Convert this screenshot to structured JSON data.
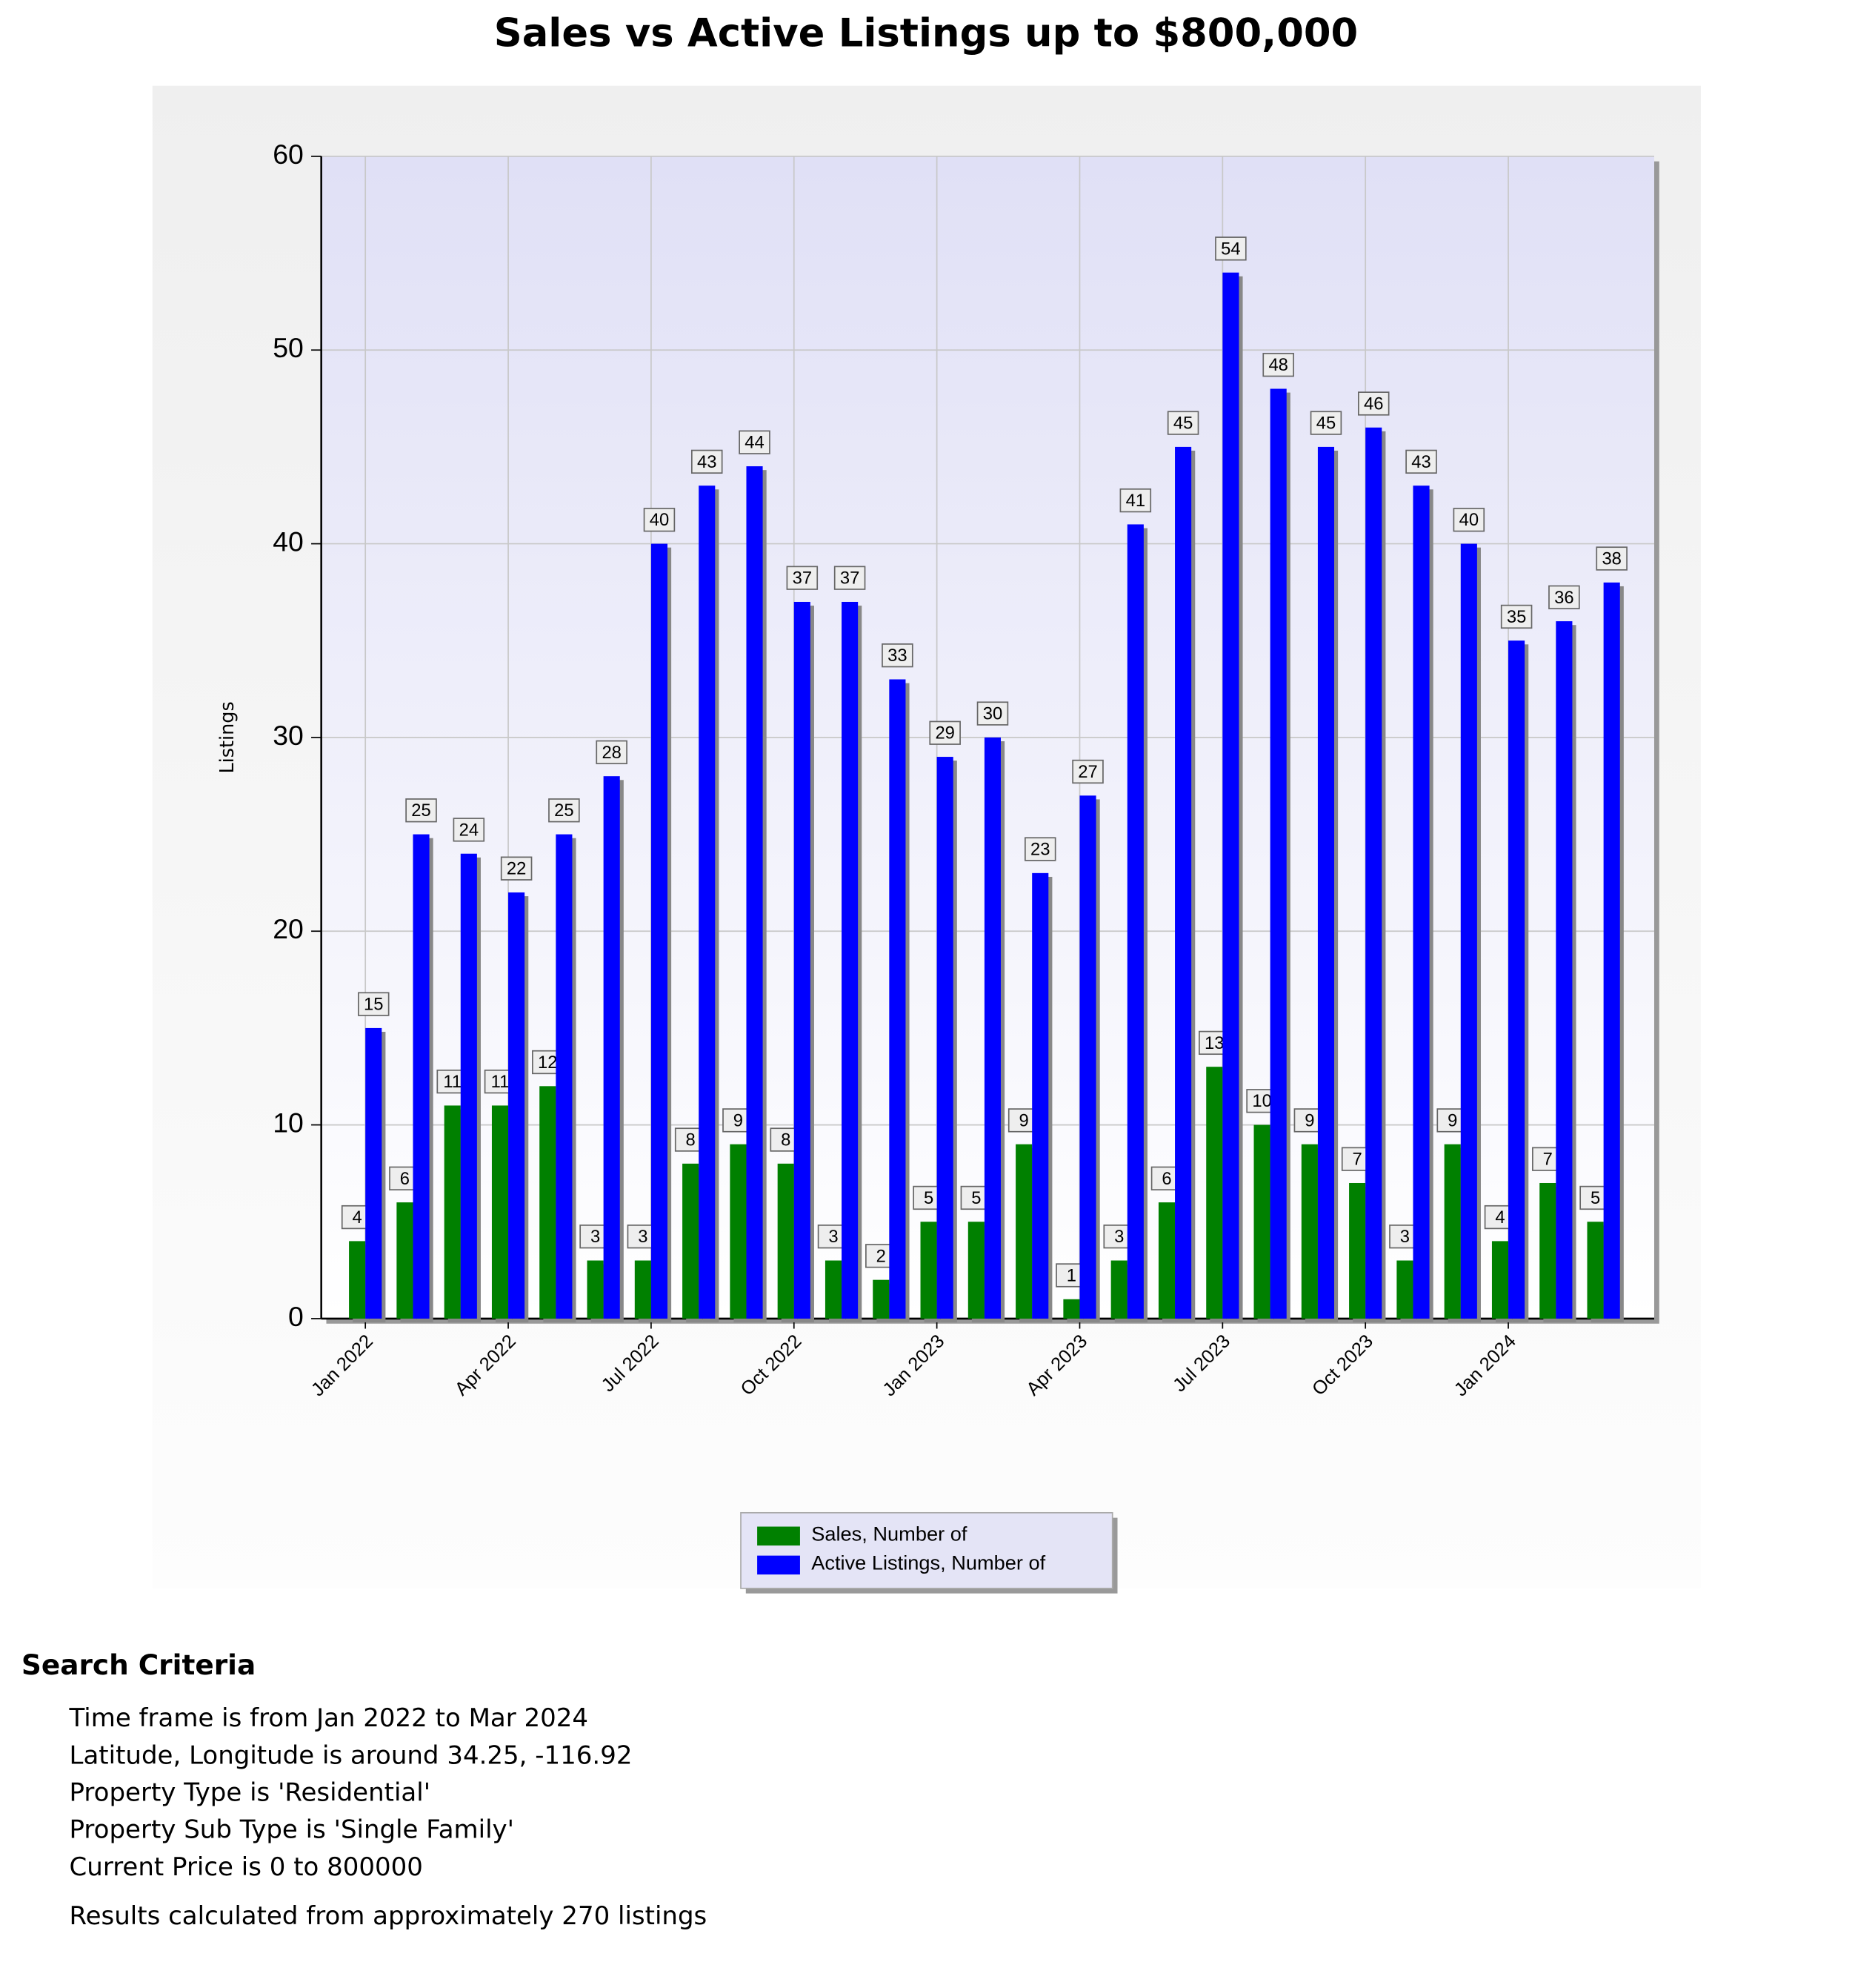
{
  "chart_data": {
    "type": "bar",
    "title": "Sales vs Active Listings up to $800,000",
    "y_label": "Listings",
    "categories": [
      "Jan 2022",
      null,
      null,
      "Apr 2022",
      null,
      null,
      "Jul 2022",
      null,
      null,
      "Oct 2022",
      null,
      null,
      "Jan 2023",
      null,
      null,
      "Apr 2023",
      null,
      null,
      "Jul 2023",
      null,
      null,
      "Oct 2023",
      null,
      null,
      "Jan 2024",
      null,
      null
    ],
    "series": [
      {
        "name": "Sales, Number of",
        "color": "#008000",
        "values": [
          4,
          6,
          11,
          11,
          12,
          3,
          3,
          8,
          9,
          8,
          3,
          2,
          5,
          5,
          9,
          1,
          3,
          6,
          13,
          10,
          9,
          7,
          3,
          9,
          4,
          7,
          5
        ]
      },
      {
        "name": "Active Listings, Number of",
        "color": "#0000ff",
        "values": [
          15,
          25,
          24,
          22,
          25,
          28,
          40,
          43,
          44,
          37,
          37,
          33,
          29,
          30,
          23,
          27,
          41,
          45,
          54,
          48,
          45,
          46,
          43,
          40,
          35,
          36,
          38
        ]
      }
    ],
    "ylim": [
      0,
      60
    ],
    "yticks": [
      0,
      10,
      20,
      30,
      40,
      50,
      60
    ],
    "grid": true
  },
  "search_criteria": {
    "title": "Search Criteria",
    "lines": [
      "Time frame is from Jan 2022 to Mar 2024",
      "Latitude, Longitude is around 34.25, -116.92",
      "Property Type is 'Residential'",
      "Property Sub Type is 'Single Family'",
      "Current Price is 0 to 800000"
    ],
    "note": "Results calculated from approximately 270 listings"
  }
}
